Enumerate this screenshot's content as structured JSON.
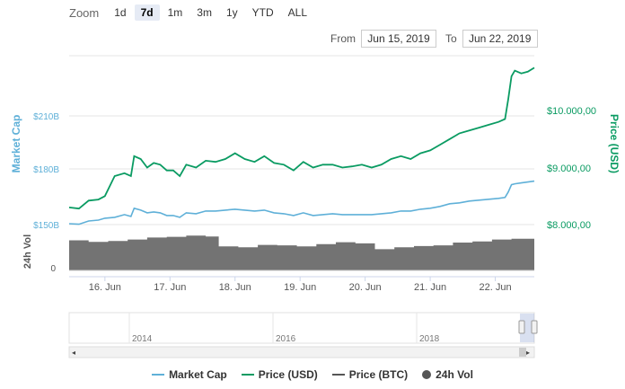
{
  "zoom": {
    "label": "Zoom",
    "buttons": [
      "1d",
      "7d",
      "1m",
      "3m",
      "1y",
      "YTD",
      "ALL"
    ],
    "active": "7d"
  },
  "range": {
    "from_label": "From",
    "from_value": "Jun 15, 2019",
    "to_label": "To",
    "to_value": "Jun 22, 2019"
  },
  "legend": {
    "market_cap": "Market Cap",
    "price_usd": "Price (USD)",
    "price_btc": "Price (BTC)",
    "vol": "24h Vol"
  },
  "colors": {
    "market_cap": "#5fb0d8",
    "price_usd": "#0a9b62",
    "price_btc": "#555555",
    "volume": "#737373"
  },
  "chart_data": {
    "type": "line",
    "left_axis": {
      "title": "Market Cap",
      "ticks": [
        "$150B",
        "$180B",
        "$210B"
      ]
    },
    "right_axis": {
      "title": "Price (USD)",
      "ticks": [
        "$8.000,00",
        "$9.000,00",
        "$10.000,00"
      ],
      "ylim": [
        8000,
        10700
      ]
    },
    "volume_axis": {
      "title": "24h Vol",
      "ticks": [
        "0"
      ]
    },
    "x_ticks": [
      "16. Jun",
      "17. Jun",
      "18. Jun",
      "19. Jun",
      "20. Jun",
      "21. Jun",
      "22. Jun"
    ],
    "x_range_days": [
      15.45,
      22.6
    ],
    "series": [
      {
        "name": "Price (USD)",
        "x": [
          15.45,
          15.6,
          15.75,
          15.9,
          16.0,
          16.15,
          16.3,
          16.4,
          16.45,
          16.55,
          16.65,
          16.75,
          16.85,
          16.95,
          17.05,
          17.15,
          17.25,
          17.4,
          17.55,
          17.7,
          17.85,
          18.0,
          18.15,
          18.3,
          18.45,
          18.6,
          18.75,
          18.9,
          19.05,
          19.2,
          19.35,
          19.5,
          19.65,
          19.8,
          19.95,
          20.1,
          20.25,
          20.4,
          20.55,
          20.7,
          20.85,
          21.0,
          21.15,
          21.3,
          21.45,
          21.6,
          21.75,
          21.9,
          22.05,
          22.15,
          22.2,
          22.25,
          22.3,
          22.4,
          22.5,
          22.6
        ],
        "values": [
          8300,
          8280,
          8420,
          8440,
          8500,
          8850,
          8900,
          8850,
          9200,
          9150,
          9000,
          9080,
          9050,
          8950,
          8950,
          8850,
          9050,
          9000,
          9120,
          9100,
          9150,
          9250,
          9150,
          9100,
          9200,
          9080,
          9050,
          8950,
          9100,
          9000,
          9050,
          9050,
          9000,
          9020,
          9050,
          9000,
          9050,
          9150,
          9200,
          9150,
          9250,
          9300,
          9400,
          9500,
          9600,
          9650,
          9700,
          9750,
          9800,
          9850,
          10200,
          10600,
          10700,
          10650,
          10680,
          10750
        ]
      },
      {
        "name": "Market Cap",
        "x": [
          15.45,
          15.6,
          15.75,
          15.9,
          16.0,
          16.15,
          16.3,
          16.4,
          16.45,
          16.55,
          16.65,
          16.75,
          16.85,
          16.95,
          17.05,
          17.15,
          17.25,
          17.4,
          17.55,
          17.7,
          17.85,
          18.0,
          18.15,
          18.3,
          18.45,
          18.6,
          18.75,
          18.9,
          19.05,
          19.2,
          19.35,
          19.5,
          19.65,
          19.8,
          19.95,
          20.1,
          20.25,
          20.4,
          20.55,
          20.7,
          20.85,
          21.0,
          21.15,
          21.3,
          21.45,
          21.6,
          21.75,
          21.9,
          22.05,
          22.15,
          22.2,
          22.25,
          22.3,
          22.4,
          22.5,
          22.6
        ],
        "values": [
          150.5,
          150.2,
          152.0,
          152.5,
          153.5,
          154.0,
          155.5,
          154.5,
          159.0,
          158.0,
          156.5,
          157.0,
          156.5,
          155.0,
          155.0,
          154.0,
          156.5,
          156.0,
          157.5,
          157.5,
          158.0,
          158.5,
          158.0,
          157.5,
          158.0,
          156.5,
          156.0,
          155.0,
          156.5,
          155.0,
          155.5,
          156.0,
          155.5,
          155.5,
          155.5,
          155.5,
          156.0,
          156.5,
          157.5,
          157.5,
          158.5,
          159.0,
          160.0,
          161.5,
          162.0,
          163.0,
          163.5,
          164.0,
          164.5,
          165.0,
          168.0,
          172.0,
          172.5,
          173.0,
          173.5,
          174.0
        ]
      },
      {
        "name": "24h Vol",
        "x": [
          15.45,
          15.75,
          16.05,
          16.35,
          16.65,
          16.95,
          17.25,
          17.55,
          17.75,
          18.05,
          18.35,
          18.65,
          18.95,
          19.25,
          19.55,
          19.85,
          20.15,
          20.45,
          20.75,
          21.05,
          21.35,
          21.65,
          21.95,
          22.25,
          22.6
        ],
        "values": [
          0.78,
          0.74,
          0.76,
          0.8,
          0.85,
          0.87,
          0.9,
          0.88,
          0.62,
          0.6,
          0.66,
          0.65,
          0.62,
          0.68,
          0.73,
          0.7,
          0.55,
          0.6,
          0.63,
          0.65,
          0.72,
          0.75,
          0.8,
          0.82,
          0.92
        ]
      }
    ],
    "navigator": {
      "labels": [
        "2014",
        "2016",
        "2018"
      ]
    }
  }
}
